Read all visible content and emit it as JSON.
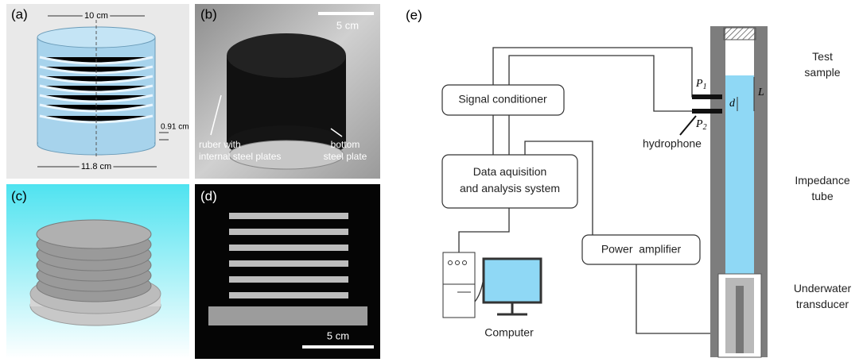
{
  "panels": {
    "a": {
      "label": "(a)",
      "top_width": "10 cm",
      "plate_gap": "0.91 cm",
      "bottom_width": "11.8 cm"
    },
    "b": {
      "label": "(b)",
      "scale": "5 cm",
      "rubber_note": [
        "ruber with",
        "internal steel plates"
      ],
      "plate_note": [
        "bottom",
        "steel plate"
      ]
    },
    "c": {
      "label": "(c)"
    },
    "d": {
      "label": "(d)",
      "scale": "5 cm"
    },
    "e": {
      "label": "(e)",
      "test_sample": [
        "Test",
        "sample"
      ],
      "signal_conditioner": "Signal conditioner",
      "p1": {
        "symbol": "P",
        "subscript": "1"
      },
      "p2": {
        "symbol": "P",
        "subscript": "2"
      },
      "d": "d",
      "L": "L",
      "hydrophone": "hydrophone",
      "impedance_tube": [
        "Impedance",
        "tube"
      ],
      "daq": [
        "Data aquisition",
        "and analysis system"
      ],
      "power_amplifier": "Power  amplifier",
      "underwater_transducer": [
        "Underwater",
        "transducer"
      ],
      "computer": "Computer"
    }
  }
}
